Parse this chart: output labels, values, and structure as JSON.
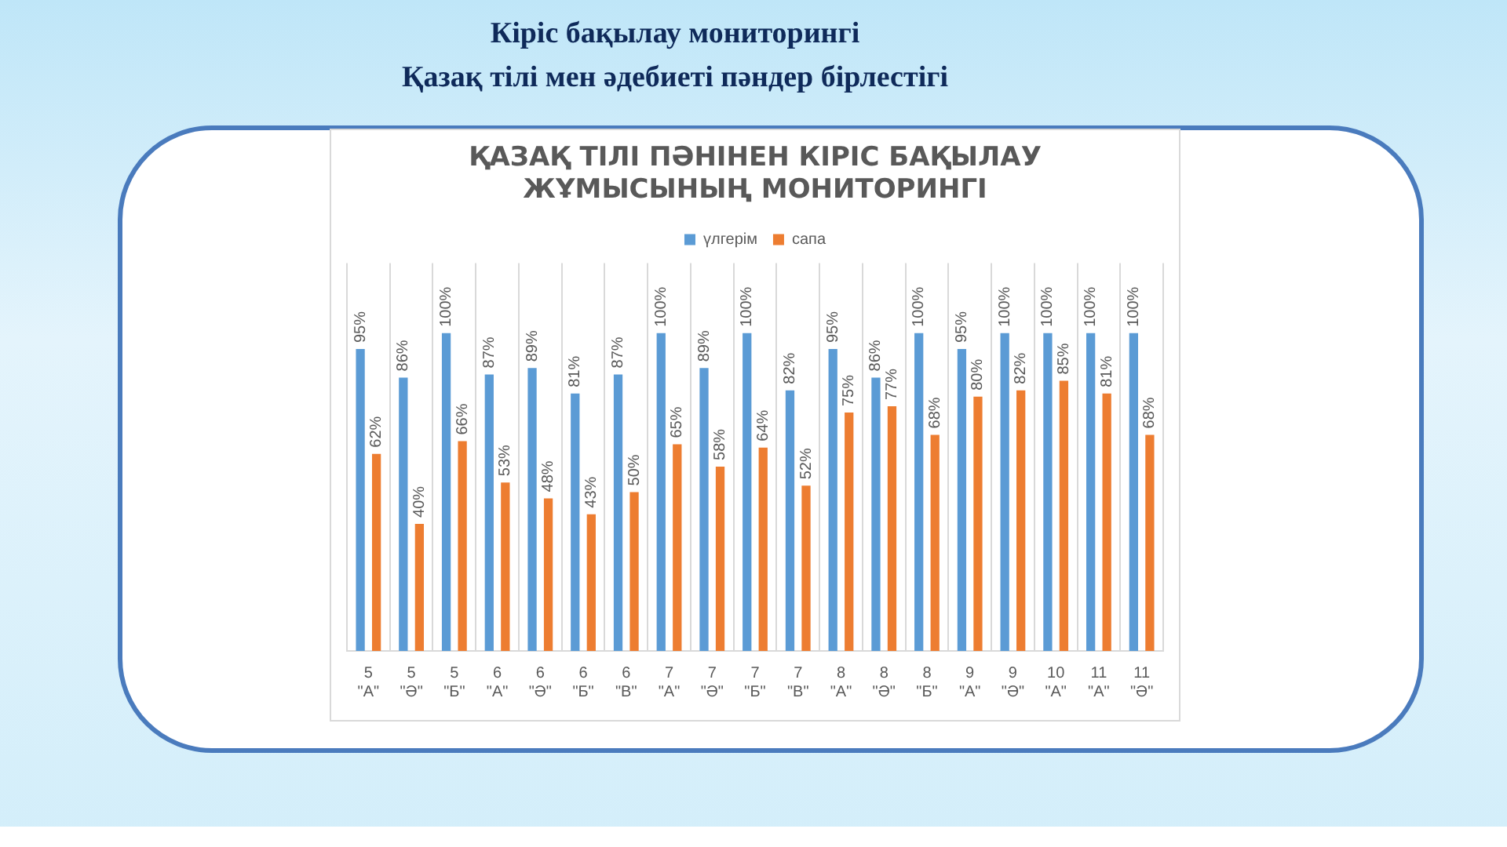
{
  "chart_data": {
    "type": "bar",
    "title": "ҚАЗАҚ ТІЛІ ПӘНІНЕН КІРІС БАҚЫЛАУ ЖҰМЫСЫНЫҢ МОНИТОРИНГІ",
    "annotations": [
      "Кіріс  бақылау мониторингі",
      "Қазақ тілі  мен әдебиеті пәндер бірлестігі"
    ],
    "categories": [
      "5 \"А\"",
      "5 \"Ә\"",
      "5 \"Б\"",
      "6 \"А\"",
      "6 \"Ә\"",
      "6 \"Б\"",
      "6 \"В\"",
      "7 \"А\"",
      "7 \"Ә\"",
      "7 \"Б\"",
      "7 \"В\"",
      "8 \"А\"",
      "8 \"Ә\"",
      "8 \"Б\"",
      "9 \"А\"",
      "9 \"Ә\"",
      "10 \"А\"",
      "11 \"А\"",
      "11 \"Ә\""
    ],
    "series": [
      {
        "name": "үлгерім",
        "color": "#5b9bd5",
        "values": [
          95,
          86,
          100,
          87,
          89,
          81,
          87,
          100,
          89,
          100,
          82,
          95,
          86,
          100,
          95,
          100,
          100,
          100,
          100
        ],
        "value_labels": [
          "95%",
          "86%",
          "100%",
          "87%",
          "89%",
          "81%",
          "87%",
          "100%",
          "89%",
          "100%",
          "82%",
          "95%",
          "86%",
          "100%",
          "95%",
          "100%",
          "100%",
          "100%",
          "100%"
        ]
      },
      {
        "name": "сапа",
        "color": "#ed7d31",
        "values": [
          62,
          40,
          66,
          53,
          48,
          43,
          50,
          65,
          58,
          64,
          52,
          75,
          77,
          68,
          80,
          82,
          85,
          81,
          68
        ],
        "value_labels": [
          "62%",
          "40%",
          "66%",
          "53%",
          "48%",
          "43%",
          "50%",
          "65%",
          "58%",
          "64%",
          "52%",
          "75%",
          "77%",
          "68%",
          "80%",
          "82%",
          "85%",
          "81%",
          "68%"
        ]
      }
    ],
    "grid": "x",
    "legend": "top"
  }
}
